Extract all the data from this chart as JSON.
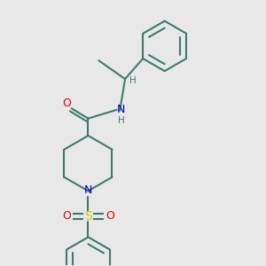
{
  "background_color": "#e8e8e8",
  "bond_color": "#3d7a6e",
  "nitrogen_color": "#0000cc",
  "oxygen_color": "#dd0000",
  "sulfur_color": "#cccc00",
  "line_width": 1.5,
  "fig_size": [
    3.0,
    3.0
  ],
  "dpi": 100,
  "xlim": [
    0,
    10
  ],
  "ylim": [
    0,
    10
  ]
}
